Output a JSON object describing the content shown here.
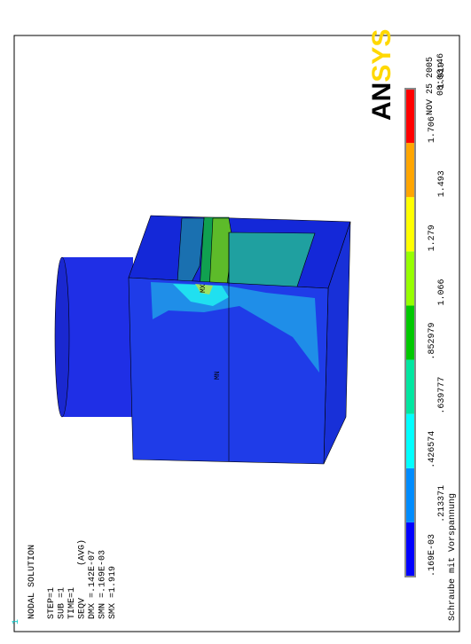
{
  "window_number": "1",
  "info": {
    "title": "NODAL SOLUTION",
    "lines": [
      "STEP=1",
      "SUB =1",
      "TIME=1",
      "SEQV      (AVG)",
      "DMX =.142E-07",
      "SMN =.169E-03",
      "SMX =1.919"
    ]
  },
  "logo": {
    "part1": "AN",
    "part2": "SYS"
  },
  "date": "NOV 25 2005",
  "time": "08:03:46",
  "model_labels": {
    "max": "MX",
    "min": "MN"
  },
  "legend": {
    "labels": [
      ".169E-03",
      ".213371",
      ".426574",
      ".639777",
      ".852979",
      "1.066",
      "1.279",
      "1.493",
      "1.706",
      "1.919"
    ],
    "colors": [
      "#0000ff",
      "#008cff",
      "#00ffff",
      "#00e6a0",
      "#00c800",
      "#96ff00",
      "#ffff00",
      "#ffa500",
      "#ff0000"
    ]
  },
  "caption": "Schraube mit Vorspannung"
}
